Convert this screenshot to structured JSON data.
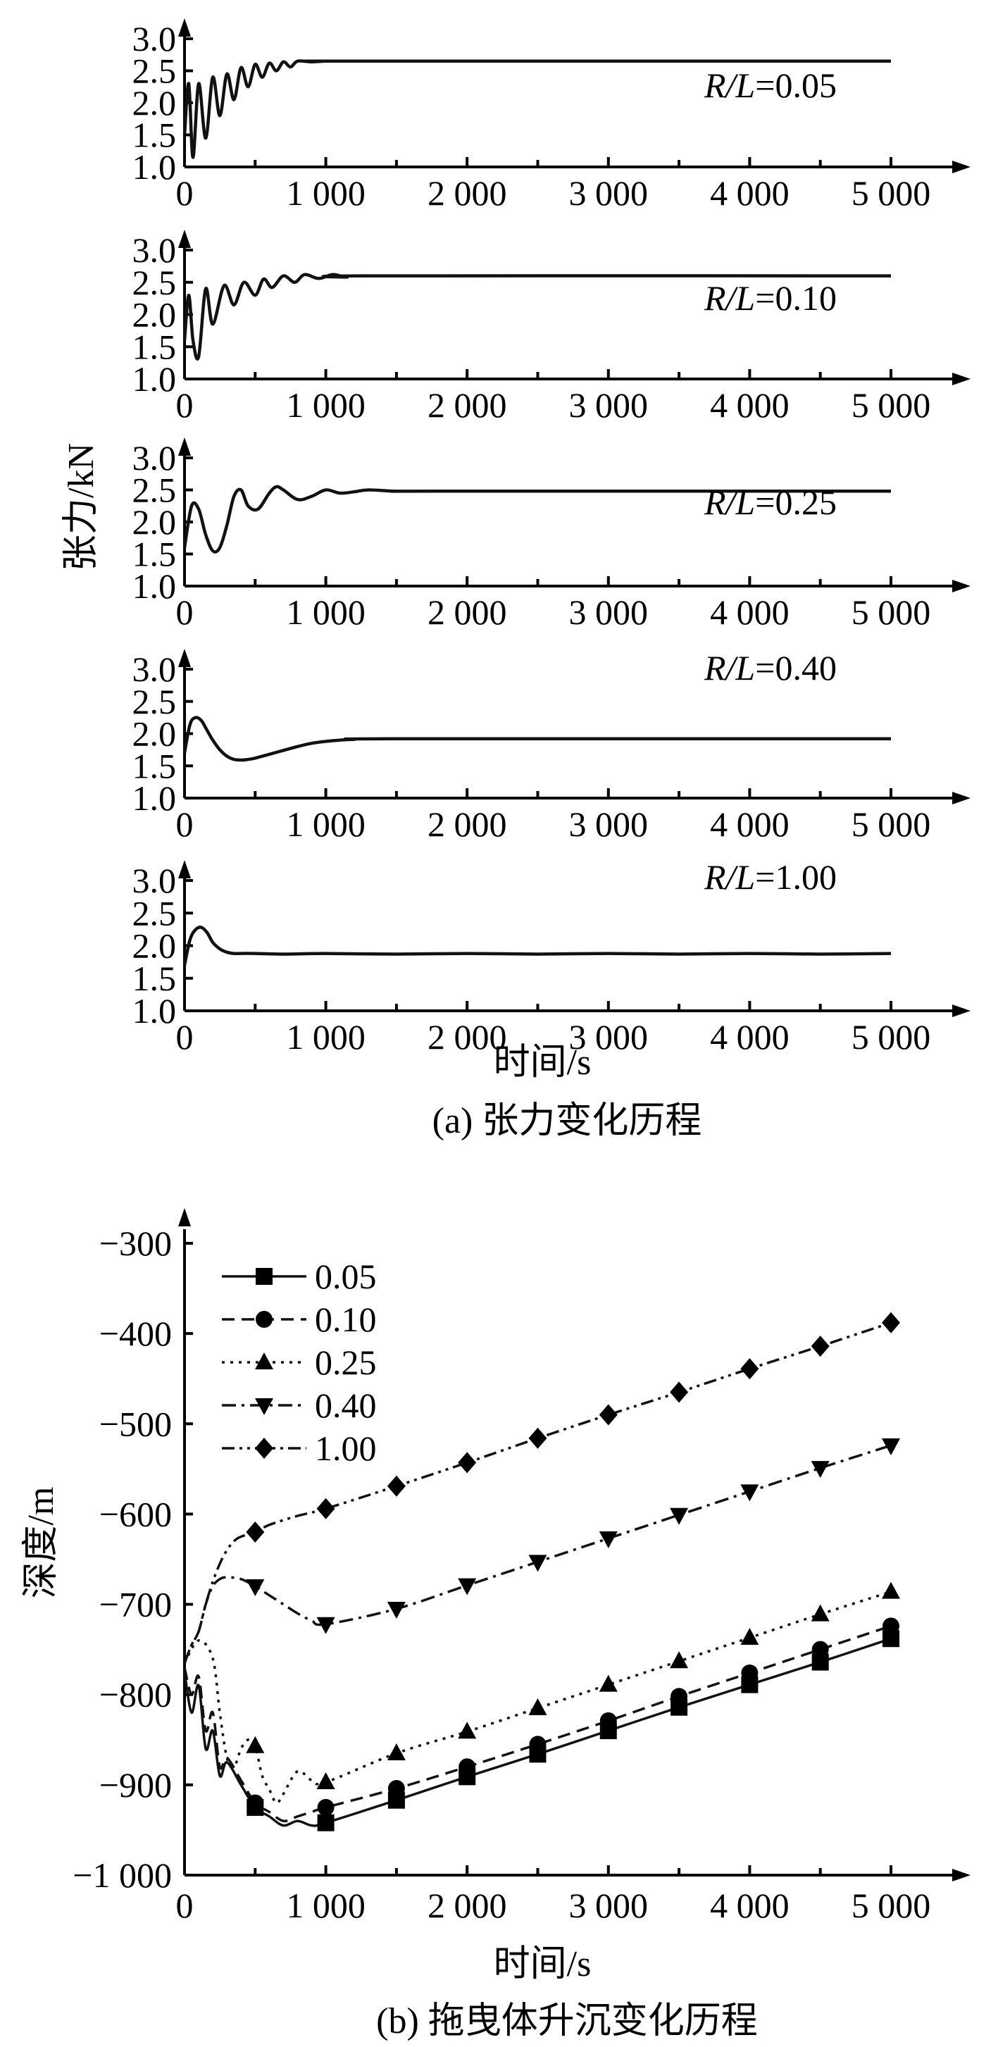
{
  "figure": {
    "caption_a": "(a) 张力变化历程",
    "caption_b": "(b) 拖曳体升沉变化历程"
  },
  "chart_data": [
    {
      "type": "line",
      "id": "a",
      "ylabel": "张力/kN",
      "xlabel": "时间/s",
      "xlim": [
        0,
        5000
      ],
      "xticks": [
        "0",
        "1 000",
        "2 000",
        "3 000",
        "4 000",
        "5 000"
      ],
      "ylim": [
        1.0,
        3.0
      ],
      "yticks": [
        "1.0",
        "1.5",
        "2.0",
        "2.5",
        "3.0"
      ],
      "panels": [
        {
          "label_var": "R/L",
          "label_val": "=0.05",
          "ratio": 0.05,
          "x": [
            0,
            30,
            60,
            100,
            150,
            200,
            250,
            300,
            350,
            400,
            450,
            500,
            550,
            600,
            650,
            700,
            750,
            800,
            900,
            1000,
            1200,
            5000
          ],
          "y": [
            1.5,
            2.3,
            1.15,
            2.3,
            1.45,
            2.4,
            1.8,
            2.45,
            2.05,
            2.55,
            2.25,
            2.6,
            2.4,
            2.62,
            2.5,
            2.64,
            2.56,
            2.65,
            2.64,
            2.65,
            2.65,
            2.65
          ]
        },
        {
          "label_var": "R/L",
          "label_val": "=0.10",
          "ratio": 0.1,
          "x": [
            0,
            30,
            60,
            100,
            150,
            200,
            280,
            350,
            420,
            500,
            560,
            620,
            700,
            780,
            850,
            950,
            1050,
            1150,
            1300,
            5000
          ],
          "y": [
            1.6,
            2.3,
            1.6,
            1.35,
            2.4,
            1.85,
            2.45,
            2.15,
            2.5,
            2.3,
            2.55,
            2.42,
            2.6,
            2.5,
            2.62,
            2.56,
            2.62,
            2.58,
            2.6,
            2.6
          ]
        },
        {
          "label_var": "R/L",
          "label_val": "=0.25",
          "ratio": 0.25,
          "x": [
            0,
            50,
            100,
            150,
            200,
            250,
            300,
            350,
            400,
            450,
            520,
            600,
            650,
            700,
            800,
            900,
            1000,
            1100,
            1200,
            1300,
            1500,
            1800,
            5000
          ],
          "y": [
            1.6,
            2.25,
            2.2,
            1.8,
            1.55,
            1.6,
            1.95,
            2.4,
            2.5,
            2.25,
            2.2,
            2.45,
            2.55,
            2.5,
            2.35,
            2.4,
            2.5,
            2.45,
            2.47,
            2.5,
            2.48,
            2.48,
            2.48
          ]
        },
        {
          "label_var": "R/L",
          "label_val": "=0.40",
          "ratio": 0.4,
          "x": [
            0,
            40,
            80,
            120,
            160,
            200,
            250,
            300,
            350,
            400,
            450,
            500,
            600,
            700,
            800,
            900,
            1000,
            1100,
            1200,
            1500,
            5000
          ],
          "y": [
            1.7,
            2.15,
            2.25,
            2.2,
            2.05,
            1.9,
            1.75,
            1.65,
            1.6,
            1.59,
            1.6,
            1.62,
            1.68,
            1.74,
            1.8,
            1.85,
            1.88,
            1.9,
            1.91,
            1.92,
            1.92
          ]
        },
        {
          "label_var": "R/L",
          "label_val": "=1.00",
          "ratio": 1.0,
          "x": [
            0,
            40,
            80,
            120,
            160,
            200,
            250,
            300,
            350,
            400,
            500,
            700,
            1000,
            1500,
            2000,
            2500,
            3000,
            3500,
            4000,
            4500,
            5000
          ],
          "y": [
            1.7,
            2.1,
            2.25,
            2.28,
            2.2,
            2.05,
            1.95,
            1.9,
            1.88,
            1.88,
            1.88,
            1.87,
            1.88,
            1.87,
            1.88,
            1.87,
            1.88,
            1.87,
            1.88,
            1.87,
            1.88
          ]
        }
      ]
    },
    {
      "type": "line",
      "id": "b",
      "ylabel": "深度/m",
      "xlabel": "时间/s",
      "xlim": [
        0,
        5000
      ],
      "xticks": [
        "0",
        "1 000",
        "2 000",
        "3 000",
        "4 000",
        "5 000"
      ],
      "ylim": [
        -1000,
        -300
      ],
      "yticks": [
        "−1 000",
        "−900",
        "−800",
        "−700",
        "−600",
        "−500",
        "−400",
        "−300"
      ],
      "legend": "top-left",
      "series": [
        {
          "name": "0.05",
          "marker": "square",
          "dash": "solid",
          "x": [
            0,
            50,
            100,
            150,
            200,
            250,
            300,
            400,
            500,
            600,
            700,
            800,
            900,
            1000,
            1500,
            2000,
            2500,
            3000,
            3500,
            4000,
            4500,
            5000
          ],
          "y": [
            -775,
            -820,
            -790,
            -860,
            -840,
            -890,
            -875,
            -900,
            -925,
            -935,
            -945,
            -940,
            -945,
            -942,
            -917,
            -891,
            -866,
            -840,
            -814,
            -789,
            -764,
            -738
          ],
          "markers_x": [
            500,
            1000,
            1500,
            2000,
            2500,
            3000,
            3500,
            4000,
            4500,
            5000
          ]
        },
        {
          "name": "0.10",
          "marker": "circle",
          "dash": "dashed",
          "x": [
            0,
            50,
            100,
            150,
            200,
            250,
            300,
            400,
            500,
            600,
            700,
            800,
            900,
            1000,
            1500,
            2000,
            2500,
            3000,
            3500,
            4000,
            4500,
            5000
          ],
          "y": [
            -770,
            -800,
            -780,
            -840,
            -820,
            -880,
            -870,
            -895,
            -920,
            -930,
            -940,
            -935,
            -930,
            -925,
            -904,
            -880,
            -855,
            -829,
            -802,
            -776,
            -750,
            -724
          ],
          "markers_x": [
            500,
            1000,
            1500,
            2000,
            2500,
            3000,
            3500,
            4000,
            4500,
            5000
          ]
        },
        {
          "name": "0.25",
          "marker": "triangle-up",
          "dash": "dotted",
          "x": [
            0,
            100,
            200,
            250,
            300,
            350,
            400,
            450,
            500,
            550,
            600,
            650,
            700,
            800,
            900,
            1000,
            1500,
            2000,
            2500,
            3000,
            3500,
            4000,
            4500,
            5000
          ],
          "y": [
            -765,
            -740,
            -760,
            -820,
            -870,
            -880,
            -860,
            -850,
            -857,
            -890,
            -905,
            -920,
            -910,
            -885,
            -895,
            -897,
            -865,
            -841,
            -815,
            -789,
            -763,
            -737,
            -711,
            -686
          ],
          "markers_x": [
            500,
            1000,
            1500,
            2000,
            2500,
            3000,
            3500,
            4000,
            4500,
            5000
          ]
        },
        {
          "name": "0.40",
          "marker": "triangle-down",
          "dash": "dashdot",
          "x": [
            0,
            50,
            100,
            150,
            200,
            250,
            300,
            400,
            500,
            600,
            700,
            800,
            900,
            1000,
            1500,
            2000,
            2500,
            3000,
            3500,
            4000,
            4500,
            5000
          ],
          "y": [
            -765,
            -745,
            -730,
            -700,
            -680,
            -672,
            -670,
            -672,
            -680,
            -690,
            -700,
            -710,
            -718,
            -722,
            -705,
            -679,
            -653,
            -627,
            -601,
            -575,
            -549,
            -524
          ],
          "markers_x": [
            500,
            1000,
            1500,
            2000,
            2500,
            3000,
            3500,
            4000,
            4500,
            5000
          ]
        },
        {
          "name": "1.00",
          "marker": "diamond",
          "dash": "dashdotdot",
          "x": [
            0,
            50,
            100,
            150,
            200,
            250,
            300,
            350,
            400,
            500,
            600,
            800,
            1000,
            1500,
            2000,
            2500,
            3000,
            3500,
            4000,
            4500,
            5000
          ],
          "y": [
            -765,
            -745,
            -730,
            -700,
            -675,
            -655,
            -640,
            -630,
            -625,
            -620,
            -612,
            -602,
            -594,
            -569,
            -543,
            -516,
            -490,
            -465,
            -439,
            -414,
            -388
          ],
          "markers_x": [
            500,
            1000,
            1500,
            2000,
            2500,
            3000,
            3500,
            4000,
            4500,
            5000
          ]
        }
      ]
    }
  ]
}
